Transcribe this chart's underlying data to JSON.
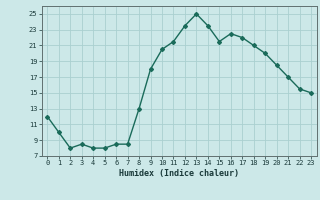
{
  "x": [
    0,
    1,
    2,
    3,
    4,
    5,
    6,
    7,
    8,
    9,
    10,
    11,
    12,
    13,
    14,
    15,
    16,
    17,
    18,
    19,
    20,
    21,
    22,
    23
  ],
  "y": [
    12,
    10,
    8,
    8.5,
    8,
    8,
    8.5,
    8.5,
    13,
    18,
    20.5,
    21.5,
    23.5,
    25,
    23.5,
    21.5,
    22.5,
    22,
    21,
    20,
    18.5,
    17,
    15.5,
    15
  ],
  "xlabel": "Humidex (Indice chaleur)",
  "ylim": [
    7,
    26
  ],
  "xlim": [
    -0.5,
    23.5
  ],
  "yticks": [
    7,
    9,
    11,
    13,
    15,
    17,
    19,
    21,
    23,
    25
  ],
  "xticks": [
    0,
    1,
    2,
    3,
    4,
    5,
    6,
    7,
    8,
    9,
    10,
    11,
    12,
    13,
    14,
    15,
    16,
    17,
    18,
    19,
    20,
    21,
    22,
    23
  ],
  "line_color": "#1a6b5a",
  "bg_color": "#cce8e8",
  "grid_color": "#aad0d0",
  "marker": "D",
  "marker_size": 2,
  "line_width": 1.0,
  "tick_fontsize": 5.0,
  "xlabel_fontsize": 6.0
}
